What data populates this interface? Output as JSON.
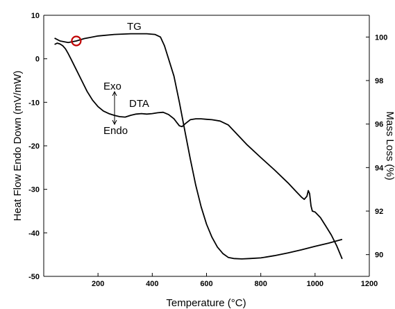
{
  "chart_data": {
    "type": "line",
    "title": "",
    "xlabel": "Temperature (°C)",
    "ylabel_left": "Heat Flow Endo Down (mV/mW)",
    "ylabel_right": "Mass Loss (%)",
    "xlim": [
      0,
      1200
    ],
    "ylim_left": [
      -50,
      10
    ],
    "ylim_right": [
      89,
      101
    ],
    "x_ticks": [
      200,
      400,
      600,
      800,
      1000,
      1200
    ],
    "y_left_ticks": [
      10,
      0,
      -10,
      -20,
      -30,
      -40,
      -50
    ],
    "y_right_ticks": [
      100,
      98,
      96,
      94,
      92,
      90
    ],
    "grid": false,
    "legend": "none",
    "annotations": {
      "tg_label": "TG",
      "dta_label": "DTA",
      "exo_label": "Exo",
      "endo_label": "Endo"
    },
    "marker": {
      "shape": "circle",
      "color": "#c00000",
      "x": 120,
      "y_right": 99.82
    },
    "series": [
      {
        "name": "TG",
        "axis": "right",
        "x": [
          40,
          60,
          90,
          120,
          150,
          200,
          260,
          320,
          380,
          410,
          430,
          445,
          460,
          480,
          500,
          520,
          540,
          560,
          580,
          600,
          620,
          640,
          660,
          680,
          700,
          730,
          760,
          800,
          850,
          900,
          950,
          1000,
          1050,
          1100
        ],
        "y": [
          99.95,
          99.82,
          99.75,
          99.82,
          99.93,
          100.05,
          100.12,
          100.15,
          100.15,
          100.12,
          100.0,
          99.6,
          99.0,
          98.2,
          97.0,
          95.7,
          94.4,
          93.2,
          92.2,
          91.4,
          90.8,
          90.35,
          90.05,
          89.87,
          89.82,
          89.8,
          89.82,
          89.85,
          89.95,
          90.08,
          90.22,
          90.38,
          90.53,
          90.7
        ]
      },
      {
        "name": "DTA",
        "axis": "left",
        "x": [
          40,
          50,
          60,
          70,
          80,
          90,
          100,
          120,
          140,
          160,
          180,
          200,
          220,
          240,
          260,
          280,
          300,
          320,
          340,
          360,
          380,
          400,
          420,
          440,
          460,
          480,
          490,
          500,
          510,
          520,
          540,
          560,
          580,
          600,
          620,
          650,
          680,
          700,
          750,
          800,
          850,
          900,
          930,
          950,
          960,
          970,
          975,
          980,
          985,
          990,
          1000,
          1020,
          1040,
          1060,
          1080,
          1100
        ],
        "y": [
          3.3,
          3.6,
          3.4,
          3.0,
          2.3,
          1.2,
          0.0,
          -2.5,
          -5.0,
          -7.5,
          -9.5,
          -11.0,
          -12.0,
          -12.6,
          -13.0,
          -13.3,
          -13.4,
          -13.0,
          -12.7,
          -12.6,
          -12.7,
          -12.6,
          -12.4,
          -12.3,
          -12.8,
          -13.8,
          -14.6,
          -15.4,
          -15.6,
          -15.0,
          -14.0,
          -13.8,
          -13.8,
          -13.9,
          -14.0,
          -14.3,
          -15.2,
          -16.5,
          -19.8,
          -22.7,
          -25.5,
          -28.5,
          -30.5,
          -31.8,
          -32.3,
          -31.6,
          -30.3,
          -31.0,
          -33.8,
          -35.0,
          -35.2,
          -36.5,
          -38.5,
          -40.5,
          -43.0,
          -46.0
        ]
      }
    ]
  }
}
